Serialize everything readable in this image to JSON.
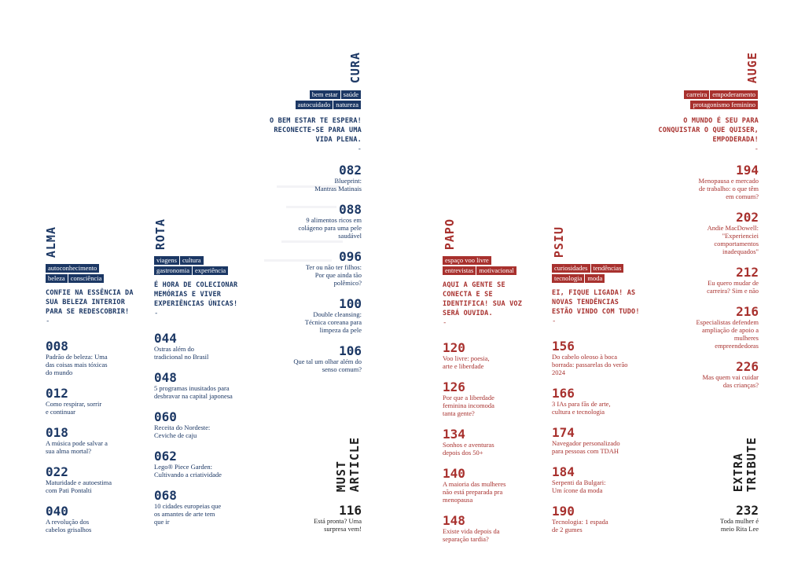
{
  "sections": {
    "alma": {
      "title": "ALMA",
      "tags": [
        "autoconhecimento",
        "beleza",
        "consciência"
      ],
      "tagline": "CONFIE NA ESSÊNCIA DA SUA BELEZA INTERIOR PARA SE REDESCOBRIR!",
      "dash": "-",
      "entries": [
        {
          "page": "008",
          "text": "Padrão de beleza: Uma das coisas mais tóxicas do mundo"
        },
        {
          "page": "012",
          "text": "Como respirar, sorrir e continuar"
        },
        {
          "page": "018",
          "text": "A música pode salvar a sua alma mortal?"
        },
        {
          "page": "022",
          "text": "Maturidade e autoestima com Pati Pontalti"
        },
        {
          "page": "040",
          "text": "A revolução dos cabelos grisalhos"
        }
      ]
    },
    "rota": {
      "title": "ROTA",
      "tags": [
        "viagens",
        "cultura",
        "gastronomia",
        "experiência"
      ],
      "tagline": "É HORA DE COLECIONAR MEMÓRIAS E VIVER EXPERIÊNCIAS ÚNICAS!",
      "dash": "-",
      "entries": [
        {
          "page": "044",
          "text": "Ostras além do tradicional no Brasil"
        },
        {
          "page": "048",
          "text": "5 programas inusitados para desbravar na capital japonesa"
        },
        {
          "page": "060",
          "text": "Receita do Nordeste: Ceviche de caju"
        },
        {
          "page": "062",
          "text": "Lego® Piece Garden: Cultivando a criatividade"
        },
        {
          "page": "068",
          "text": "10 cidades europeias que os amantes de arte tem que ir"
        }
      ]
    },
    "cura": {
      "title": "CURA",
      "tags": [
        "bem estar",
        "saúde",
        "autocuidado",
        "natureza"
      ],
      "tagline": "O BEM ESTAR TE ESPERA! RECONECTE-SE PARA UMA VIDA PLENA.",
      "dash": "-",
      "entries": [
        {
          "page": "082",
          "text": "Blueprint: Mantras Matinais"
        },
        {
          "page": "088",
          "text": "9 alimentos ricos em colágeno para uma pele saudável"
        },
        {
          "page": "096",
          "text": "Ter ou não ter filhos: Por que ainda tão polêmico?"
        },
        {
          "page": "100",
          "text": "Double cleansing: Técnica coreana para limpeza da pele"
        },
        {
          "page": "106",
          "text": "Que tal um olhar além do senso comum?"
        }
      ]
    },
    "must": {
      "title_line1": "MUST",
      "title_line2": "ARTICLE",
      "entries": [
        {
          "page": "116",
          "text": "Está pronta? Uma surpresa vem!"
        }
      ]
    },
    "papo": {
      "title": "PAPO",
      "tags": [
        "espaço voo livre",
        "entrevistas",
        "motivacional"
      ],
      "tagline": "AQUI A GENTE SE CONECTA E SE IDENTIFICA! SUA VOZ SERÁ OUVIDA.",
      "dash": "-",
      "entries": [
        {
          "page": "120",
          "text": "Voo livre: poesia, arte e liberdade"
        },
        {
          "page": "126",
          "text": "Por que a liberdade feminina incomoda tanta gente?"
        },
        {
          "page": "134",
          "text": "Sonhos e aventuras depois dos 50+"
        },
        {
          "page": "140",
          "text": "A maioria das mulheres não está preparada pra menopausa"
        },
        {
          "page": "148",
          "text": "Existe vida depois da separação tardia?"
        }
      ]
    },
    "psiu": {
      "title": "PSIU",
      "tags": [
        "curiosidades",
        "tendências",
        "tecnologia",
        "moda"
      ],
      "tagline": "EI, FIQUE LIGADA! AS NOVAS TENDÊNCIAS ESTÃO VINDO COM TUDO!",
      "dash": "-",
      "entries": [
        {
          "page": "156",
          "text": "Do cabelo oleoso à boca borrada: passarelas do verão 2024"
        },
        {
          "page": "166",
          "text": "3 IAs para fãs de arte, cultura e tecnologia"
        },
        {
          "page": "174",
          "text": "Navegador personalizado para pessoas com TDAH"
        },
        {
          "page": "184",
          "text": "Serpenti da Bulgari: Um ícone da moda"
        },
        {
          "page": "190",
          "text": "Tecnologia: 1 espada de 2 gumes"
        }
      ]
    },
    "auge": {
      "title": "AUGE",
      "tags": [
        "carreira",
        "empoderamento",
        "protagonismo feminino"
      ],
      "tagline": "O MUNDO É SEU PARA CONQUISTAR O QUE QUISER, EMPODERADA!",
      "dash": "-",
      "entries": [
        {
          "page": "194",
          "text": "Menopausa e mercado de trabalho: o que têm em comum?"
        },
        {
          "page": "202",
          "text": "Andie MacDowell: \"Experienciei comportamentos inadequados\""
        },
        {
          "page": "212",
          "text": "Eu quero mudar de carreira? Sim e não"
        },
        {
          "page": "216",
          "text": "Especialistas defendem ampliação de apoio a mulheres empreendedoras"
        },
        {
          "page": "226",
          "text": "Mas quem vai cuidar das crianças?"
        }
      ]
    },
    "extra": {
      "title_line1": "EXTRA",
      "title_line2": "TRIBUTE",
      "entries": [
        {
          "page": "232",
          "text": "Toda mulher é meio Rita Lee"
        }
      ]
    }
  },
  "colors": {
    "navy": "#1b3764",
    "red": "#a8312e",
    "dark": "#1f1f1f"
  }
}
